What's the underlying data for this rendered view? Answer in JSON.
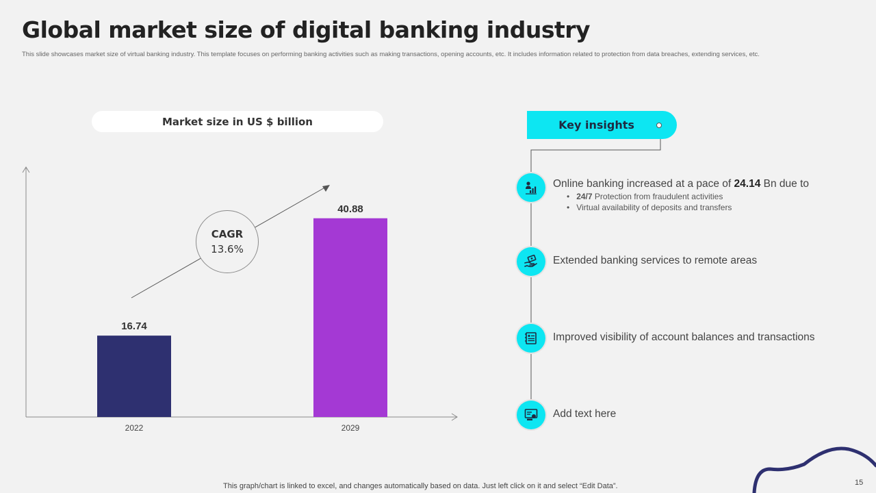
{
  "slide": {
    "title": "Global market size of digital banking industry",
    "subtitle": "This slide showcases market size of virtual banking industry. This template focuses on performing banking activities such as making transactions, opening accounts, etc. It includes information related to protection from data breaches, extending services, etc.",
    "footnote": "This graph/chart is linked to excel, and changes automatically based on data. Just left click on it and select “Edit Data”.",
    "page_number": "15"
  },
  "chart_data": {
    "type": "bar",
    "title": "Market size in US $ billion",
    "categories": [
      "2022",
      "2029"
    ],
    "values": [
      16.74,
      40.88
    ],
    "value_labels": [
      "16.74",
      "40.88"
    ],
    "bar_colors": [
      "#2e3070",
      "#a439d4"
    ],
    "ylim": [
      0,
      50
    ],
    "grid": false,
    "annotation": {
      "label": "CAGR",
      "value": "13.6%"
    }
  },
  "insights": {
    "header": "Key insights",
    "items": [
      {
        "icon": "person-chart-icon",
        "text_pre": "Online banking increased at a pace of ",
        "text_bold": "24.14",
        "text_post": " Bn due to",
        "bullets": [
          {
            "bold": "24/7",
            "text": " Protection from fraudulent activities"
          },
          {
            "bold": "",
            "text": "Virtual availability of deposits and transfers"
          }
        ]
      },
      {
        "icon": "hand-money-icon",
        "text": "Extended banking services to remote areas"
      },
      {
        "icon": "ledger-icon",
        "text": "Improved visibility of account balances and transactions"
      },
      {
        "icon": "report-icon",
        "text": "Add text here"
      }
    ]
  },
  "colors": {
    "accent": "#0de6f2",
    "navy": "#2e3070",
    "purple": "#a439d4",
    "background": "#f2f2f2"
  }
}
